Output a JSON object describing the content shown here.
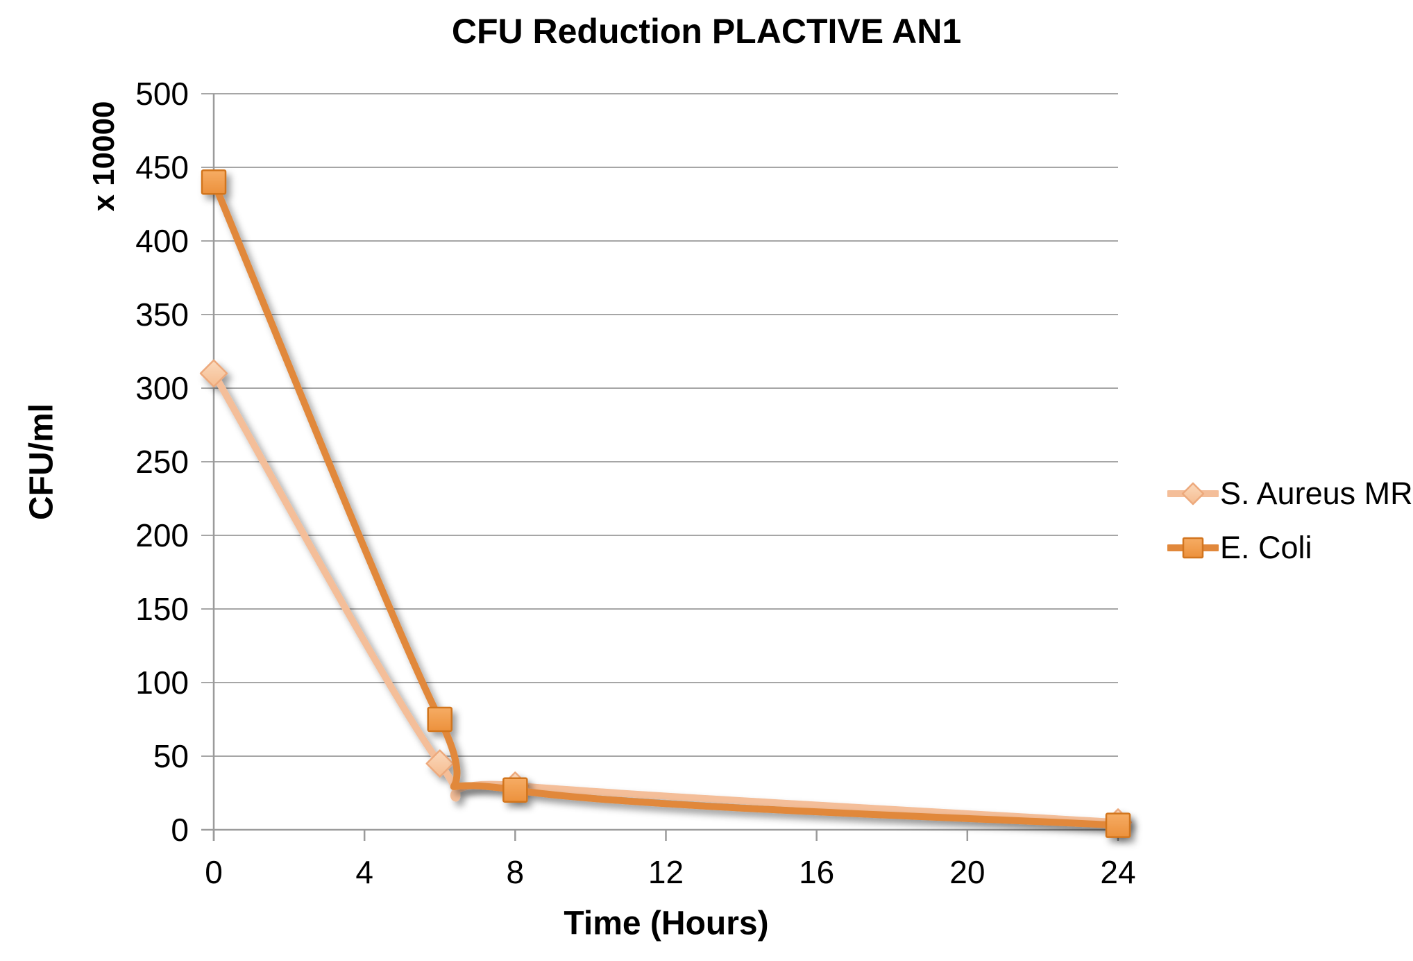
{
  "chart_data": {
    "type": "line",
    "title": "CFU Reduction PLACTIVE AN1",
    "xlabel": "Time (Hours)",
    "ylabel": "CFU/ml",
    "ylabel_secondary": "x 10000",
    "x": [
      0,
      6,
      8,
      24
    ],
    "series": [
      {
        "name": "S. Aureus MR",
        "values": [
          310,
          45,
          30,
          5
        ],
        "line_color": "#F4BE99",
        "marker": "diamond",
        "marker_fill_top": "#FBD9BC",
        "marker_fill_bottom": "#F5BC90",
        "marker_border": "#EDA97C"
      },
      {
        "name": "E. Coli",
        "values": [
          440,
          75,
          27,
          3
        ],
        "line_color": "#E1883B",
        "marker": "square",
        "marker_fill_top": "#F6AC64",
        "marker_fill_bottom": "#EC913C",
        "marker_border": "#D2751F"
      }
    ],
    "xlim": [
      0,
      24
    ],
    "ylim": [
      0,
      500
    ],
    "x_ticks": [
      0,
      4,
      8,
      12,
      16,
      20,
      24
    ],
    "y_ticks": [
      0,
      50,
      100,
      150,
      200,
      250,
      300,
      350,
      400,
      450,
      500
    ],
    "grid": true,
    "grid_color": "#A6A6A6",
    "axis_color": "#9B9B9B",
    "line_style": "smoothed",
    "legend_position": "right"
  }
}
